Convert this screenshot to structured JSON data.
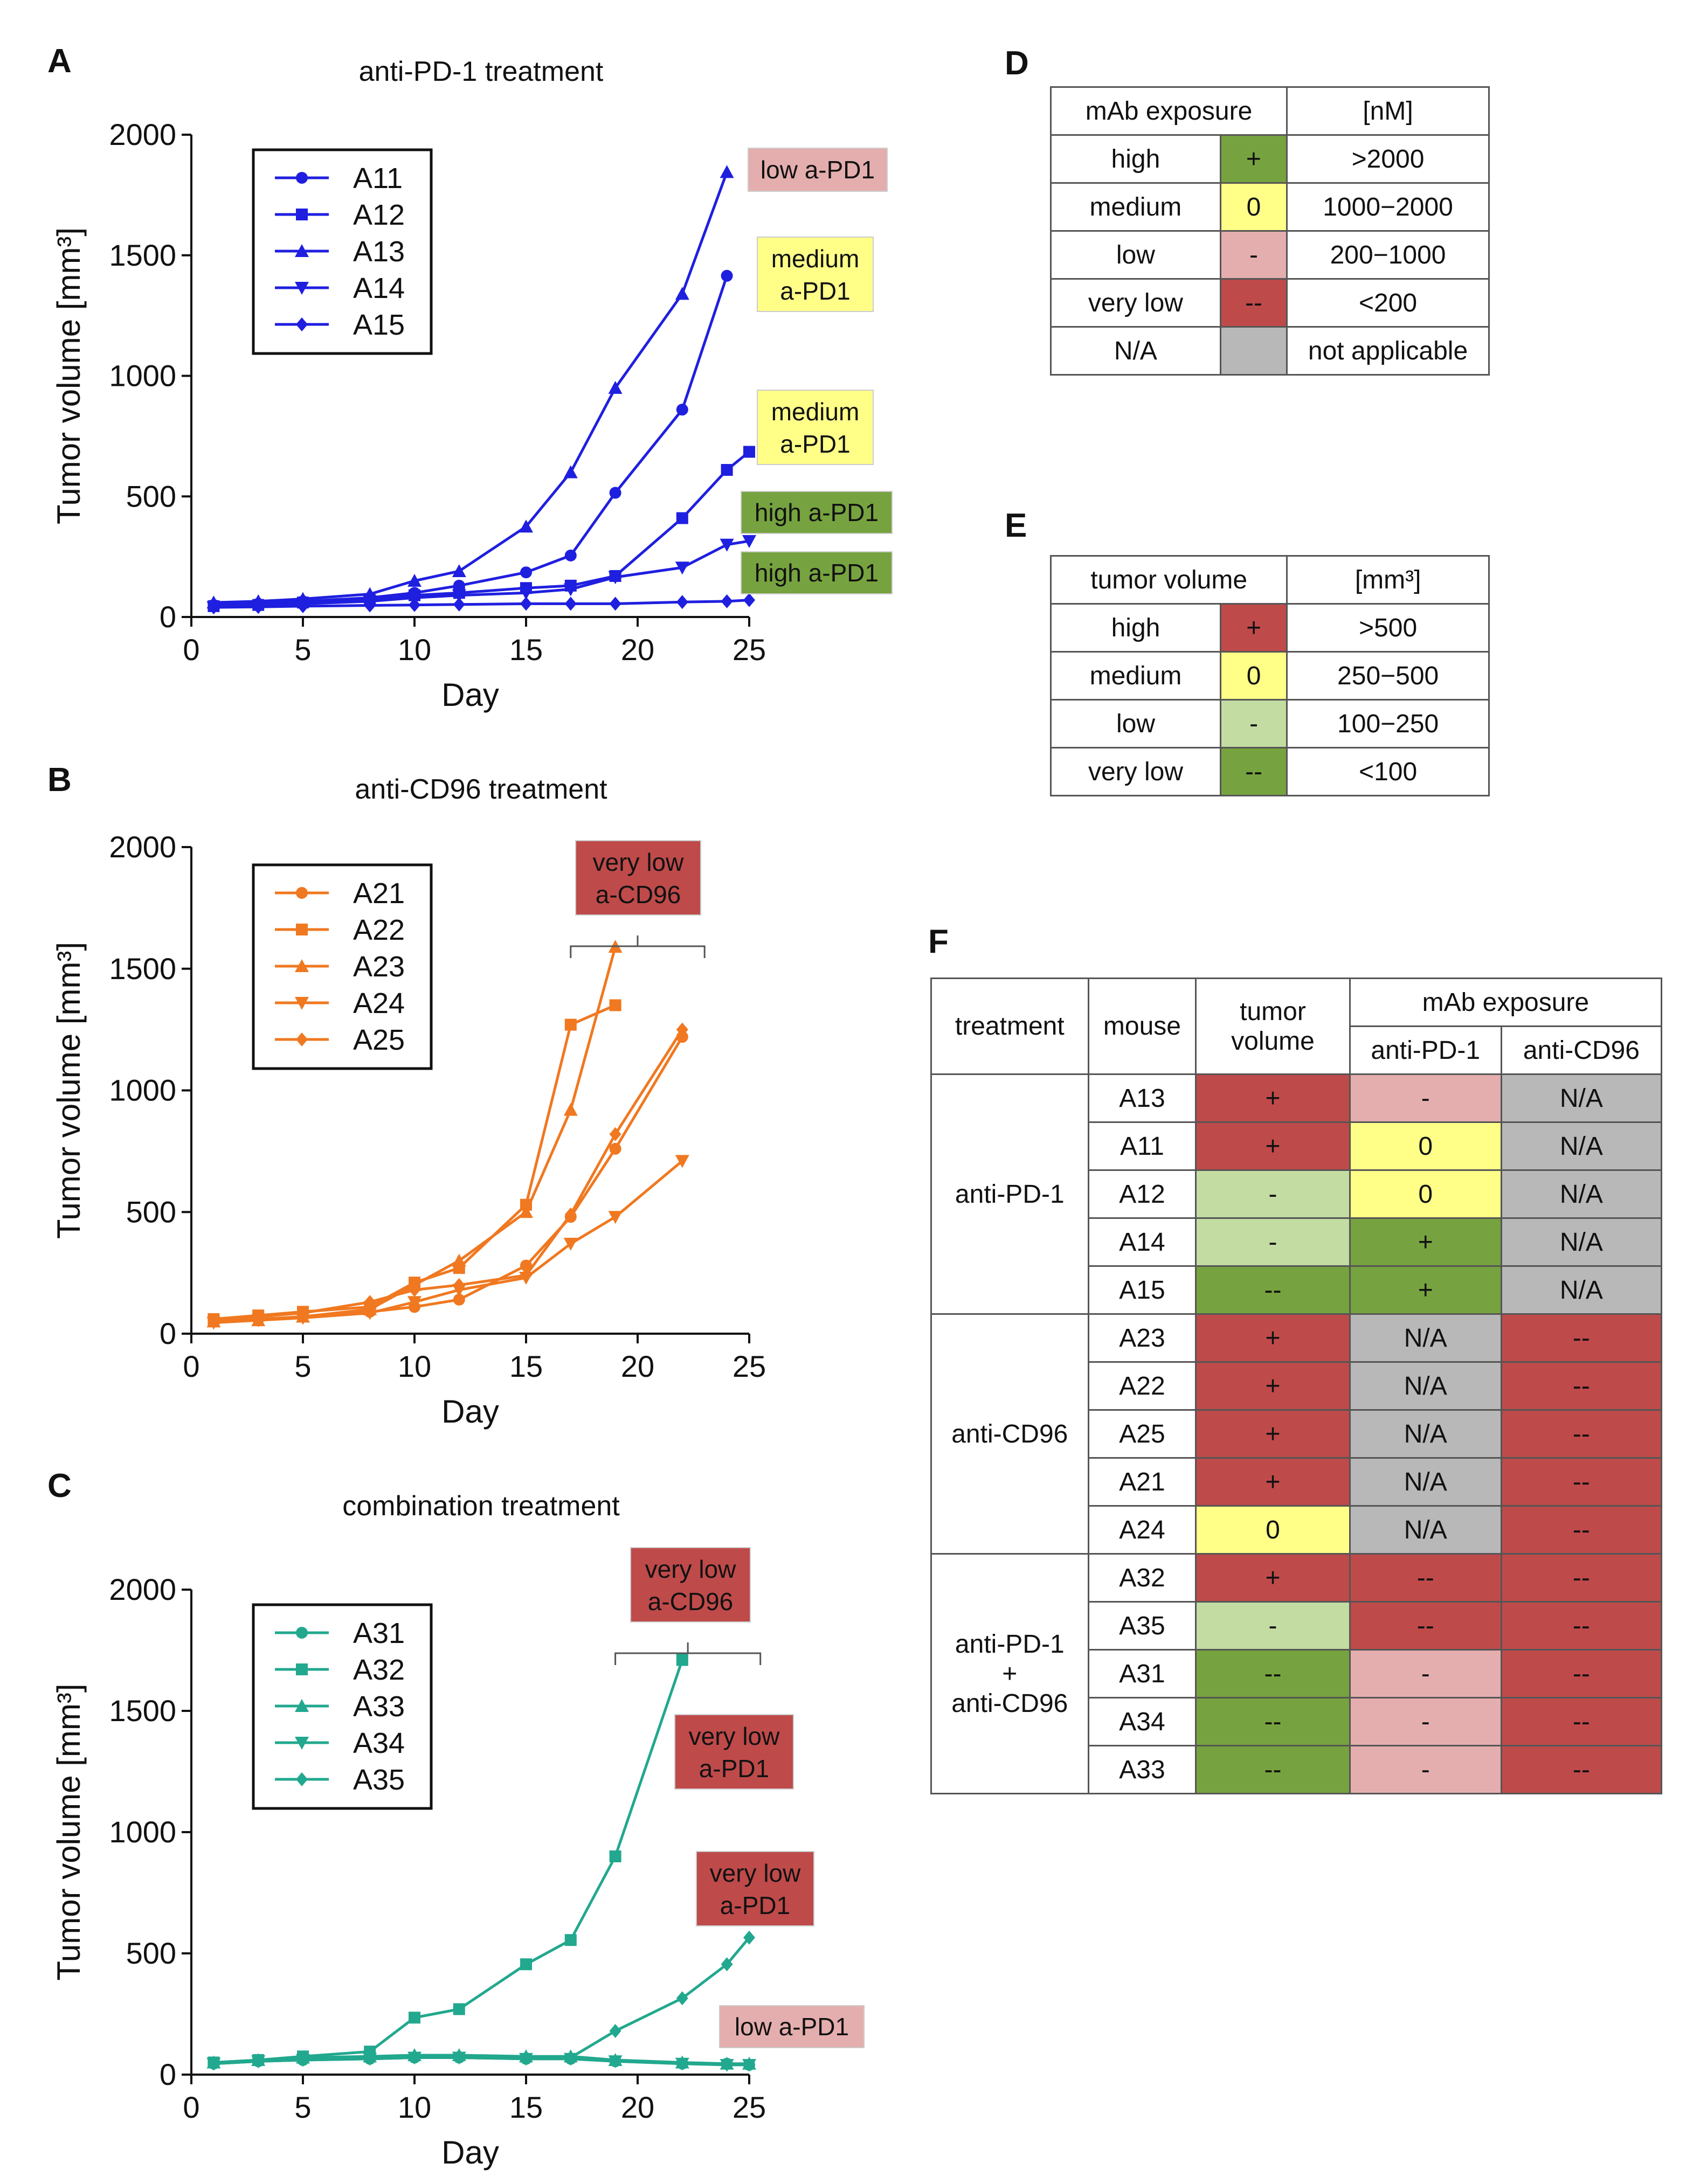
{
  "panels": {
    "A": "A",
    "B": "B",
    "C": "C",
    "D": "D",
    "E": "E",
    "F": "F"
  },
  "colors": {
    "blue": "#1f1fe0",
    "orange": "#f07820",
    "teal": "#22a88e",
    "green": "#76a33f",
    "yellow": "#ffff88",
    "pink": "#e5aeae",
    "red": "#bf4a4a",
    "light_green": "#c2dca2",
    "gray": "#b8b8b8"
  },
  "chart_data": [
    {
      "type": "line",
      "title": "anti-PD-1 treatment",
      "xlabel": "Day",
      "ylabel": "Tumor volume [mm³]",
      "xlim": [
        0,
        25
      ],
      "ylim": [
        0,
        2000
      ],
      "xticks": [
        0,
        5,
        10,
        15,
        20,
        25
      ],
      "yticks": [
        0,
        500,
        1000,
        1500,
        2000
      ],
      "color": "#1f1fe0",
      "series": [
        {
          "name": "A11",
          "marker": "circle",
          "x": [
            1,
            3,
            5,
            8,
            10,
            12,
            15,
            17,
            19,
            22,
            24
          ],
          "y": [
            50,
            55,
            65,
            80,
            100,
            130,
            185,
            255,
            515,
            860,
            1415
          ]
        },
        {
          "name": "A12",
          "marker": "square",
          "x": [
            1,
            3,
            5,
            8,
            10,
            12,
            15,
            17,
            19,
            22,
            24,
            25
          ],
          "y": [
            45,
            50,
            60,
            70,
            90,
            100,
            120,
            130,
            170,
            410,
            610,
            685
          ]
        },
        {
          "name": "A13",
          "marker": "triangle-up",
          "x": [
            1,
            3,
            5,
            8,
            10,
            12,
            15,
            17,
            19,
            22,
            24
          ],
          "y": [
            60,
            65,
            75,
            95,
            150,
            190,
            375,
            600,
            950,
            1340,
            1845
          ]
        },
        {
          "name": "A14",
          "marker": "triangle-down",
          "x": [
            1,
            3,
            5,
            8,
            10,
            12,
            15,
            17,
            19,
            22,
            24,
            25
          ],
          "y": [
            40,
            45,
            55,
            65,
            80,
            90,
            100,
            115,
            165,
            205,
            300,
            315
          ]
        },
        {
          "name": "A15",
          "marker": "diamond",
          "x": [
            1,
            3,
            5,
            8,
            10,
            12,
            15,
            17,
            19,
            22,
            24,
            25
          ],
          "y": [
            40,
            42,
            45,
            48,
            50,
            52,
            55,
            55,
            55,
            62,
            65,
            70
          ]
        }
      ],
      "annotations": [
        {
          "text": [
            "low a-PD1"
          ],
          "color": "#e5aeae",
          "series": "A13"
        },
        {
          "text": [
            "medium",
            "a-PD1"
          ],
          "color": "#ffff88",
          "series": "A11"
        },
        {
          "text": [
            "medium",
            "a-PD1"
          ],
          "color": "#ffff88",
          "series": "A12"
        },
        {
          "text": [
            "high a-PD1"
          ],
          "color": "#76a33f",
          "series": "A14"
        },
        {
          "text": [
            "high a-PD1"
          ],
          "color": "#76a33f",
          "series": "A15"
        }
      ]
    },
    {
      "type": "line",
      "title": "anti-CD96 treatment",
      "xlabel": "Day",
      "ylabel": "Tumor volume [mm³]",
      "xlim": [
        0,
        25
      ],
      "ylim": [
        0,
        2000
      ],
      "xticks": [
        0,
        5,
        10,
        15,
        20,
        25
      ],
      "yticks": [
        0,
        500,
        1000,
        1500,
        2000
      ],
      "color": "#f07820",
      "series": [
        {
          "name": "A21",
          "marker": "circle",
          "x": [
            1,
            3,
            5,
            8,
            10,
            12,
            15,
            17,
            19,
            22
          ],
          "y": [
            55,
            60,
            70,
            90,
            110,
            140,
            280,
            480,
            760,
            1220
          ]
        },
        {
          "name": "A22",
          "marker": "square",
          "x": [
            1,
            3,
            5,
            8,
            10,
            12,
            15,
            17,
            19
          ],
          "y": [
            60,
            75,
            90,
            110,
            210,
            270,
            530,
            1270,
            1350
          ]
        },
        {
          "name": "A23",
          "marker": "triangle-up",
          "x": [
            1,
            3,
            5,
            8,
            10,
            12,
            15,
            17,
            19
          ],
          "y": [
            50,
            55,
            70,
            100,
            200,
            300,
            500,
            920,
            1590
          ]
        },
        {
          "name": "A24",
          "marker": "triangle-down",
          "x": [
            1,
            3,
            5,
            8,
            10,
            12,
            15,
            17,
            19,
            22
          ],
          "y": [
            45,
            55,
            65,
            85,
            130,
            180,
            230,
            370,
            480,
            710
          ]
        },
        {
          "name": "A25",
          "marker": "diamond",
          "x": [
            1,
            3,
            5,
            8,
            10,
            12,
            15,
            17,
            19,
            22
          ],
          "y": [
            55,
            70,
            85,
            130,
            180,
            200,
            240,
            490,
            820,
            1250
          ]
        }
      ],
      "annotations": [
        {
          "text": [
            "very low",
            "a-CD96"
          ],
          "color": "#bf4a4a",
          "bracket": [
            17,
            23
          ]
        }
      ]
    },
    {
      "type": "line",
      "title": "combination treatment",
      "xlabel": "Day",
      "ylabel": "Tumor volume [mm³]",
      "xlim": [
        0,
        25
      ],
      "ylim": [
        0,
        2000
      ],
      "xticks": [
        0,
        5,
        10,
        15,
        20,
        25
      ],
      "yticks": [
        0,
        500,
        1000,
        1500,
        2000
      ],
      "color": "#22a88e",
      "series": [
        {
          "name": "A31",
          "marker": "circle",
          "x": [
            1,
            3,
            5,
            8,
            10,
            12,
            15,
            17,
            19,
            22,
            24,
            25
          ],
          "y": [
            45,
            55,
            60,
            65,
            70,
            70,
            65,
            65,
            55,
            45,
            45,
            40
          ]
        },
        {
          "name": "A32",
          "marker": "square",
          "x": [
            1,
            3,
            5,
            8,
            10,
            12,
            15,
            17,
            19,
            22
          ],
          "y": [
            50,
            60,
            75,
            95,
            235,
            270,
            455,
            555,
            900,
            1710
          ]
        },
        {
          "name": "A33",
          "marker": "triangle-up",
          "x": [
            1,
            3,
            5,
            8,
            10,
            12,
            15,
            17,
            19,
            22,
            24,
            25
          ],
          "y": [
            50,
            60,
            70,
            75,
            80,
            80,
            75,
            75,
            60,
            50,
            45,
            45
          ]
        },
        {
          "name": "A34",
          "marker": "triangle-down",
          "x": [
            1,
            3,
            5,
            8,
            10,
            12,
            15,
            17,
            19,
            22,
            24,
            25
          ],
          "y": [
            45,
            55,
            60,
            65,
            70,
            70,
            65,
            65,
            55,
            45,
            40,
            40
          ]
        },
        {
          "name": "A35",
          "marker": "diamond",
          "x": [
            1,
            3,
            5,
            8,
            10,
            12,
            15,
            17,
            19,
            22,
            24,
            25
          ],
          "y": [
            45,
            55,
            65,
            70,
            75,
            75,
            70,
            70,
            180,
            315,
            455,
            565
          ]
        }
      ],
      "annotations": [
        {
          "text": [
            "very low",
            "a-CD96"
          ],
          "color": "#bf4a4a",
          "bracket": [
            19,
            25.5
          ]
        },
        {
          "text": [
            "very low",
            "a-PD1"
          ],
          "color": "#bf4a4a",
          "series": "A32"
        },
        {
          "text": [
            "very low",
            "a-PD1"
          ],
          "color": "#bf4a4a",
          "series": "A35"
        },
        {
          "text": [
            "low a-PD1"
          ],
          "color": "#e5aeae",
          "series": "A31"
        }
      ]
    }
  ],
  "tableD": {
    "header": [
      "mAb exposure",
      "[nM]"
    ],
    "rows": [
      {
        "label": "high",
        "sym": "+",
        "color": "g",
        "range": ">2000"
      },
      {
        "label": "medium",
        "sym": "0",
        "color": "y",
        "range": "1000−2000"
      },
      {
        "label": "low",
        "sym": "-",
        "color": "p",
        "range": "200−1000"
      },
      {
        "label": "very low",
        "sym": "--",
        "color": "r",
        "range": "<200"
      },
      {
        "label": "N/A",
        "sym": "",
        "color": "gr",
        "range": "not applicable"
      }
    ]
  },
  "tableE": {
    "header": [
      "tumor volume",
      "[mm³]"
    ],
    "rows": [
      {
        "label": "high",
        "sym": "+",
        "color": "r",
        "range": ">500"
      },
      {
        "label": "medium",
        "sym": "0",
        "color": "y",
        "range": "250−500"
      },
      {
        "label": "low",
        "sym": "-",
        "color": "lg",
        "range": "100−250"
      },
      {
        "label": "very low",
        "sym": "--",
        "color": "g",
        "range": "<100"
      }
    ]
  },
  "tableF": {
    "headers": {
      "treatment": "treatment",
      "mouse": "mouse",
      "tumor_volume": "tumor volume",
      "mab_exposure": "mAb exposure",
      "anti_pd1": "anti-PD-1",
      "anti_cd96": "anti-CD96"
    },
    "groups": [
      {
        "treatment": "anti-PD-1",
        "rows": [
          {
            "mouse": "A13",
            "tv": [
              "+",
              "r"
            ],
            "pd1": [
              "-",
              "p"
            ],
            "cd96": [
              "N/A",
              "gr"
            ]
          },
          {
            "mouse": "A11",
            "tv": [
              "+",
              "r"
            ],
            "pd1": [
              "0",
              "y"
            ],
            "cd96": [
              "N/A",
              "gr"
            ]
          },
          {
            "mouse": "A12",
            "tv": [
              "-",
              "lg"
            ],
            "pd1": [
              "0",
              "y"
            ],
            "cd96": [
              "N/A",
              "gr"
            ]
          },
          {
            "mouse": "A14",
            "tv": [
              "-",
              "lg"
            ],
            "pd1": [
              "+",
              "g"
            ],
            "cd96": [
              "N/A",
              "gr"
            ]
          },
          {
            "mouse": "A15",
            "tv": [
              "--",
              "g"
            ],
            "pd1": [
              "+",
              "g"
            ],
            "cd96": [
              "N/A",
              "gr"
            ]
          }
        ]
      },
      {
        "treatment": "anti-CD96",
        "rows": [
          {
            "mouse": "A23",
            "tv": [
              "+",
              "r"
            ],
            "pd1": [
              "N/A",
              "gr"
            ],
            "cd96": [
              "--",
              "r"
            ]
          },
          {
            "mouse": "A22",
            "tv": [
              "+",
              "r"
            ],
            "pd1": [
              "N/A",
              "gr"
            ],
            "cd96": [
              "--",
              "r"
            ]
          },
          {
            "mouse": "A25",
            "tv": [
              "+",
              "r"
            ],
            "pd1": [
              "N/A",
              "gr"
            ],
            "cd96": [
              "--",
              "r"
            ]
          },
          {
            "mouse": "A21",
            "tv": [
              "+",
              "r"
            ],
            "pd1": [
              "N/A",
              "gr"
            ],
            "cd96": [
              "--",
              "r"
            ]
          },
          {
            "mouse": "A24",
            "tv": [
              "0",
              "y"
            ],
            "pd1": [
              "N/A",
              "gr"
            ],
            "cd96": [
              "--",
              "r"
            ]
          }
        ]
      },
      {
        "treatment": "anti-PD-1\n+\nanti-CD96",
        "rows": [
          {
            "mouse": "A32",
            "tv": [
              "+",
              "r"
            ],
            "pd1": [
              "--",
              "r"
            ],
            "cd96": [
              "--",
              "r"
            ]
          },
          {
            "mouse": "A35",
            "tv": [
              "-",
              "lg"
            ],
            "pd1": [
              "--",
              "r"
            ],
            "cd96": [
              "--",
              "r"
            ]
          },
          {
            "mouse": "A31",
            "tv": [
              "--",
              "g"
            ],
            "pd1": [
              "-",
              "p"
            ],
            "cd96": [
              "--",
              "r"
            ]
          },
          {
            "mouse": "A34",
            "tv": [
              "--",
              "g"
            ],
            "pd1": [
              "-",
              "p"
            ],
            "cd96": [
              "--",
              "r"
            ]
          },
          {
            "mouse": "A33",
            "tv": [
              "--",
              "g"
            ],
            "pd1": [
              "-",
              "p"
            ],
            "cd96": [
              "--",
              "r"
            ]
          }
        ]
      }
    ]
  }
}
